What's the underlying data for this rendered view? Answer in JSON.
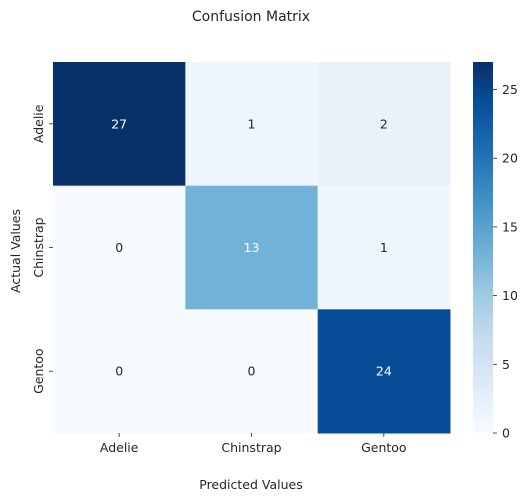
{
  "chart_data": {
    "type": "heatmap",
    "title": "Confusion Matrix",
    "xlabel": "Predicted Values",
    "ylabel": "Actual Values",
    "x_categories": [
      "Adelie",
      "Chinstrap",
      "Gentoo"
    ],
    "y_categories": [
      "Adelie",
      "Chinstrap",
      "Gentoo"
    ],
    "values": [
      [
        27,
        1,
        2
      ],
      [
        0,
        13,
        1
      ],
      [
        0,
        0,
        24
      ]
    ],
    "colorbar": {
      "range": [
        0,
        27
      ],
      "ticks": [
        "0",
        "5",
        "10",
        "15",
        "20",
        "25"
      ]
    },
    "colormap": "Blues",
    "annotation_colors": {
      "light": "#ffffff",
      "dark": "#262626"
    }
  }
}
